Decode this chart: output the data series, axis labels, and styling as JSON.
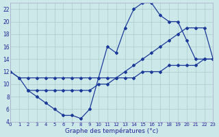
{
  "xlabel": "Graphe des températures (°c)",
  "bg_color": "#cce8e8",
  "grid_color": "#aacccc",
  "line_color": "#1a3a9a",
  "line1_x": [
    0,
    1,
    2,
    3,
    4,
    5,
    6,
    7,
    8,
    9,
    10,
    11,
    12,
    13,
    14,
    15,
    16,
    17,
    18,
    19,
    20,
    21,
    22,
    23
  ],
  "line1_y": [
    12,
    11,
    9,
    8,
    7,
    6,
    5,
    5,
    4.5,
    6,
    11,
    16,
    15,
    19,
    22,
    23,
    23,
    21,
    20,
    20,
    17,
    14,
    14,
    14
  ],
  "line2_x": [
    0,
    1,
    2,
    3,
    4,
    5,
    6,
    7,
    8,
    9,
    10,
    11,
    12,
    13,
    14,
    15,
    16,
    17,
    18,
    19,
    20,
    21,
    22,
    23
  ],
  "line2_y": [
    12,
    11,
    11,
    11,
    11,
    11,
    11,
    11,
    11,
    11,
    11,
    11,
    11,
    11,
    11,
    12,
    12,
    12,
    13,
    13,
    13,
    13,
    14,
    14
  ],
  "line3_x": [
    2,
    3,
    4,
    5,
    6,
    7,
    8,
    9,
    10,
    11,
    12,
    13,
    14,
    15,
    16,
    17,
    18,
    19,
    20,
    21,
    22,
    23
  ],
  "line3_y": [
    9,
    9,
    9,
    9,
    9,
    9,
    9,
    9,
    10,
    10,
    11,
    12,
    13,
    14,
    15,
    16,
    17,
    18,
    19,
    19,
    19,
    14
  ],
  "ylim": [
    4,
    23
  ],
  "yticks": [
    4,
    6,
    8,
    10,
    12,
    14,
    16,
    18,
    20,
    22
  ],
  "xlim": [
    0,
    23
  ],
  "xticks": [
    0,
    1,
    2,
    3,
    4,
    5,
    6,
    7,
    8,
    9,
    10,
    11,
    12,
    13,
    14,
    15,
    16,
    17,
    18,
    19,
    20,
    21,
    22,
    23
  ]
}
